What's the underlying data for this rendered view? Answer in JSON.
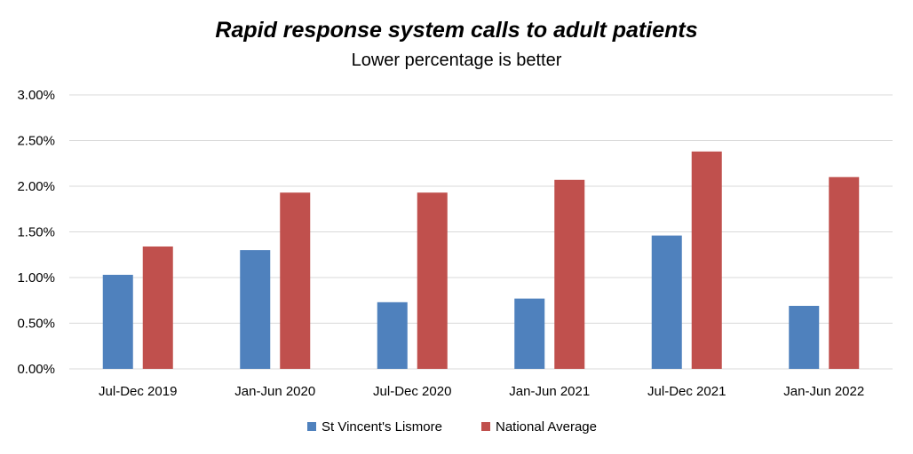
{
  "chart_data": {
    "type": "bar",
    "title": "Rapid response system calls to adult patients",
    "subtitle": "Lower percentage is better",
    "xlabel": "",
    "ylabel": "",
    "ylim": [
      0,
      3.0
    ],
    "yticks": [
      "0.00%",
      "0.50%",
      "1.00%",
      "1.50%",
      "2.00%",
      "2.50%",
      "3.00%"
    ],
    "grid": true,
    "legend_position": "bottom",
    "categories": [
      "Jul-Dec 2019",
      "Jan-Jun 2020",
      "Jul-Dec 2020",
      "Jan-Jun 2021",
      "Jul-Dec 2021",
      "Jan-Jun 2022"
    ],
    "series": [
      {
        "name": "St Vincent's Lismore",
        "color": "#4f81bd",
        "values": [
          1.03,
          1.3,
          0.73,
          0.77,
          1.46,
          0.69
        ]
      },
      {
        "name": "National Average",
        "color": "#c0504d",
        "values": [
          1.34,
          1.93,
          1.93,
          2.07,
          2.38,
          2.1
        ]
      }
    ]
  }
}
